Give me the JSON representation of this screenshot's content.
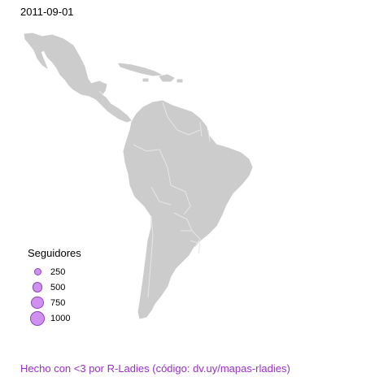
{
  "date_label": "2011-09-01",
  "legend": {
    "title": "Seguidores",
    "items": [
      {
        "label": "250",
        "value": 250
      },
      {
        "label": "500",
        "value": 500
      },
      {
        "label": "750",
        "value": 750
      },
      {
        "label": "1000",
        "value": 1000
      }
    ]
  },
  "caption": "Hecho con <3 por R-Ladies (código: dv.uy/mapas-rladies)",
  "colors": {
    "land": "#cccccc",
    "borders": "#e6e6e6",
    "bubble_fill": "#cf90f0",
    "bubble_stroke": "#8a48b8",
    "caption": "#9b2fc8"
  }
}
